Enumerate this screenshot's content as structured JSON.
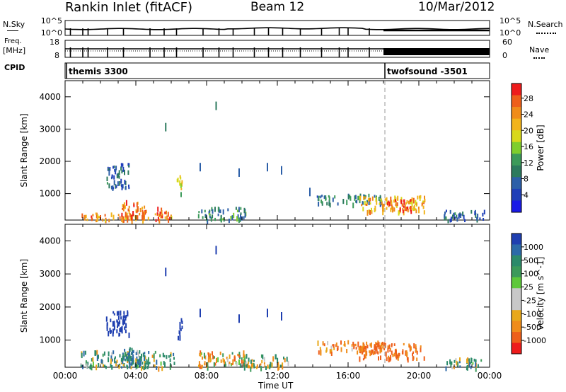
{
  "header": {
    "title": "Rankin Inlet (fitACF)",
    "beam": "Beam 12",
    "date": "10/Mar/2012"
  },
  "top_panels": {
    "nsky": {
      "left_label": "N.Sky",
      "right_label": "N.Search",
      "left_ticks": [
        "10^5",
        "10^0"
      ],
      "right_ticks": [
        "10^5",
        "10^0"
      ]
    },
    "freq": {
      "left_label": "Freq.",
      "unit": "[MHz]",
      "right_label": "Nave",
      "left_ticks": [
        "18",
        "8"
      ],
      "right_ticks": [
        "60",
        "0"
      ]
    },
    "cpid": {
      "label": "CPID",
      "modes": [
        {
          "name": "themis 3300",
          "start_hour": 0
        },
        {
          "name": "twofsound -3501",
          "start_hour": 18
        }
      ]
    },
    "scan_tick_hours": [
      0.3,
      1.0,
      1.3,
      2.4,
      3.3,
      4.8,
      5.6,
      6.3,
      7.8,
      8.7,
      9.5,
      10.7,
      11.5,
      12.3,
      13.3,
      14.5,
      15.5,
      16.0,
      17.2
    ]
  },
  "x_axis": {
    "label": "Time UT",
    "ticks": [
      "00:00",
      "04:00",
      "08:00",
      "12:00",
      "16:00",
      "20:00",
      "00:00"
    ]
  },
  "power_colorbar": {
    "label": "Power [dB]",
    "ticks": [
      "28",
      "24",
      "20",
      "16",
      "12",
      "8",
      "4"
    ],
    "colors": [
      "#ee1c1c",
      "#ee5f1a",
      "#f08c1a",
      "#f2b41c",
      "#d8d81a",
      "#7fce2c",
      "#3c9a5a",
      "#2c7a5e",
      "#2c5fa8",
      "#1f3fb8",
      "#1a1ae6"
    ]
  },
  "velocity_colorbar": {
    "label": "Velocity [m s^-1]",
    "ticks": [
      "1000",
      "500",
      "100",
      "25",
      "-25",
      "-100",
      "-500",
      "-1000"
    ],
    "colors": [
      "#1f3fb0",
      "#2c6aa8",
      "#2c8a6a",
      "#3c9a5a",
      "#5ec83a",
      "#c8c8c8",
      "#c8c8c8",
      "#e8a81a",
      "#f08c1a",
      "#ee5f1a",
      "#ee1c1c"
    ]
  },
  "chart_data": [
    {
      "type": "heatmap",
      "name": "Power",
      "xlabel": "Time UT",
      "ylabel": "Slant Range [km]",
      "xlim": [
        0,
        24
      ],
      "ylim": [
        180,
        4500
      ],
      "yticks": [
        1000,
        2000,
        3000,
        4000
      ],
      "colorbar_label": "Power [dB]",
      "colorbar_range": [
        0,
        30
      ],
      "mode_change_hour": 18,
      "regions": [
        {
          "t": [
            0.8,
            6.2
          ],
          "r": [
            200,
            420
          ],
          "value": 24
        },
        {
          "t": [
            3.2,
            4.6
          ],
          "r": [
            300,
            800
          ],
          "value": 26
        },
        {
          "t": [
            5.1,
            5.9
          ],
          "r": [
            200,
            600
          ],
          "value": 28
        },
        {
          "t": [
            2.3,
            3.6
          ],
          "r": [
            1200,
            1950
          ],
          "value": 6
        },
        {
          "t": [
            6.3,
            6.6
          ],
          "r": [
            1000,
            1700
          ],
          "value": 18
        },
        {
          "t": [
            7.5,
            10.2
          ],
          "r": [
            200,
            600
          ],
          "value": 10
        },
        {
          "t": [
            14.2,
            17.9
          ],
          "r": [
            700,
            1000
          ],
          "value": 9
        },
        {
          "t": [
            16.6,
            20.3
          ],
          "r": [
            450,
            950
          ],
          "value": 22
        },
        {
          "t": [
            18.2,
            19.6
          ],
          "r": [
            500,
            850
          ],
          "value": 28
        },
        {
          "t": [
            21.4,
            23.7
          ],
          "r": [
            200,
            500
          ],
          "value": 6
        }
      ],
      "streaks": [
        {
          "t": 5.65,
          "r": 3060,
          "value": 8
        },
        {
          "t": 8.5,
          "r": 3720,
          "value": 8
        },
        {
          "t": 7.6,
          "r": 1820,
          "value": 6
        },
        {
          "t": 9.8,
          "r": 1650,
          "value": 5
        },
        {
          "t": 11.4,
          "r": 1820,
          "value": 6
        },
        {
          "t": 12.2,
          "r": 1720,
          "value": 6
        },
        {
          "t": 13.8,
          "r": 1050,
          "value": 6
        }
      ]
    },
    {
      "type": "heatmap",
      "name": "Velocity",
      "xlabel": "Time UT",
      "ylabel": "Slant Range [km]",
      "xlim": [
        0,
        24
      ],
      "ylim": [
        180,
        4500
      ],
      "yticks": [
        1000,
        2000,
        3000,
        4000
      ],
      "colorbar_label": "Velocity [m s^-1]",
      "colorbar_range": [
        -1000,
        1000
      ],
      "mode_change_hour": 18,
      "regions": [
        {
          "t": [
            0.8,
            6.2
          ],
          "r": [
            200,
            700
          ],
          "value": 60
        },
        {
          "t": [
            3.2,
            4.6
          ],
          "r": [
            300,
            800
          ],
          "value": 120
        },
        {
          "t": [
            2.3,
            3.6
          ],
          "r": [
            1200,
            1950
          ],
          "value": 800
        },
        {
          "t": [
            6.3,
            6.6
          ],
          "r": [
            1000,
            1700
          ],
          "value": 900
        },
        {
          "t": [
            7.5,
            10.2
          ],
          "r": [
            200,
            700
          ],
          "value": -60
        },
        {
          "t": [
            10.0,
            12.6
          ],
          "r": [
            200,
            600
          ],
          "value": 0
        },
        {
          "t": [
            14.2,
            17.9
          ],
          "r": [
            650,
            1000
          ],
          "value": -100
        },
        {
          "t": [
            16.6,
            20.3
          ],
          "r": [
            450,
            950
          ],
          "value": -150
        },
        {
          "t": [
            21.4,
            23.7
          ],
          "r": [
            200,
            500
          ],
          "value": 60
        }
      ],
      "streaks": [
        {
          "t": 5.65,
          "r": 3060,
          "value": 800
        },
        {
          "t": 8.5,
          "r": 3720,
          "value": 800
        },
        {
          "t": 7.6,
          "r": 1820,
          "value": 900
        },
        {
          "t": 9.8,
          "r": 1650,
          "value": 800
        },
        {
          "t": 11.4,
          "r": 1820,
          "value": 700
        },
        {
          "t": 12.2,
          "r": 1720,
          "value": 600
        }
      ]
    }
  ]
}
